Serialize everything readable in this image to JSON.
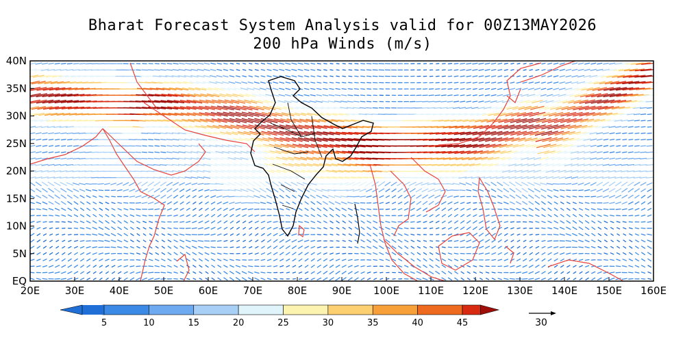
{
  "title": {
    "line1": "Bharat Forecast System Analysis valid for 00Z13MAY2026",
    "line2": "200 hPa Winds (m/s)"
  },
  "map": {
    "lon_range": [
      20,
      160
    ],
    "lat_range": [
      0,
      40
    ],
    "x_ticks": [
      "20E",
      "30E",
      "40E",
      "50E",
      "60E",
      "70E",
      "80E",
      "90E",
      "100E",
      "110E",
      "120E",
      "130E",
      "140E",
      "150E",
      "160E"
    ],
    "y_ticks": [
      "EQ",
      "5N",
      "10N",
      "15N",
      "20N",
      "25N",
      "30N",
      "35N",
      "40N"
    ],
    "coastline_color": "#e8403a",
    "border_color": "#000000"
  },
  "colorbar": {
    "labels": [
      "5",
      "10",
      "15",
      "20",
      "25",
      "30",
      "35",
      "40",
      "45"
    ],
    "colors": [
      "#1f6fd6",
      "#3a8ae6",
      "#6eaaf0",
      "#a8d0f6",
      "#e0f4fc",
      "#fdf3b0",
      "#fcd070",
      "#f7a03a",
      "#ee6a1e",
      "#d82a10",
      "#a00e0a"
    ]
  },
  "reference_vector": {
    "label": "30"
  }
}
